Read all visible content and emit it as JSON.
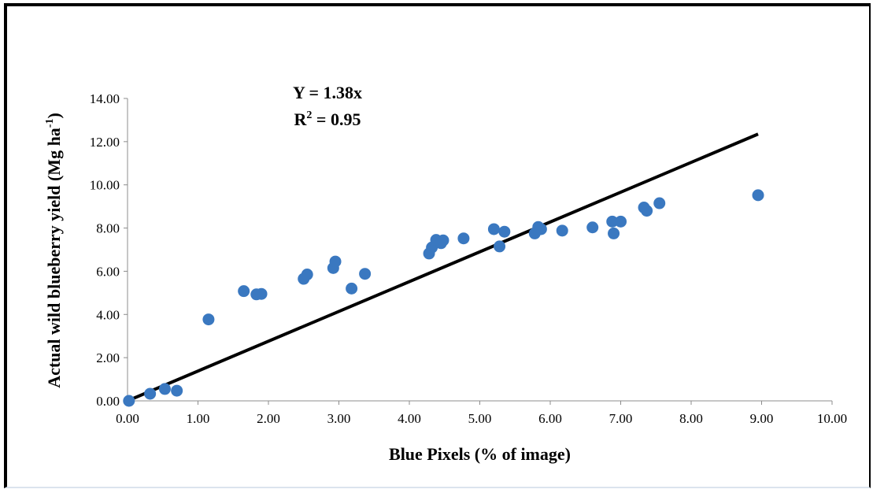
{
  "chart_data": {
    "type": "scatter",
    "title": "",
    "xlabel": "Blue Pixels (% of image)",
    "ylabel": "Actual wild blueberry yield (Mg ha",
    "ylabel_sup": "-1",
    "ylabel_tail": ")",
    "xlim": [
      0,
      10
    ],
    "ylim": [
      0,
      14
    ],
    "x_ticks": [
      "0.00",
      "1.00",
      "2.00",
      "3.00",
      "4.00",
      "5.00",
      "6.00",
      "7.00",
      "8.00",
      "9.00",
      "10.00"
    ],
    "y_ticks": [
      "0.00",
      "2.00",
      "4.00",
      "6.00",
      "8.00",
      "10.00",
      "12.00",
      "14.00"
    ],
    "grid": false,
    "marker_color": "#3a78c0",
    "trendline": {
      "slope": 1.38,
      "x_range": [
        0,
        8.95
      ],
      "color": "#000000",
      "equation": "Y = 1.38x",
      "r2_prefix": "R",
      "r2_sup": "2",
      "r2_suffix": " = 0.95"
    },
    "points": [
      {
        "x": 0.02,
        "y": 0.0
      },
      {
        "x": 0.32,
        "y": 0.33
      },
      {
        "x": 0.53,
        "y": 0.55
      },
      {
        "x": 0.7,
        "y": 0.47
      },
      {
        "x": 1.15,
        "y": 3.77
      },
      {
        "x": 1.65,
        "y": 5.08
      },
      {
        "x": 1.83,
        "y": 4.93
      },
      {
        "x": 1.9,
        "y": 4.95
      },
      {
        "x": 2.5,
        "y": 5.65
      },
      {
        "x": 2.55,
        "y": 5.85
      },
      {
        "x": 2.92,
        "y": 6.15
      },
      {
        "x": 2.95,
        "y": 6.45
      },
      {
        "x": 3.18,
        "y": 5.2
      },
      {
        "x": 3.37,
        "y": 5.88
      },
      {
        "x": 4.28,
        "y": 6.82
      },
      {
        "x": 4.32,
        "y": 7.1
      },
      {
        "x": 4.38,
        "y": 7.45
      },
      {
        "x": 4.45,
        "y": 7.3
      },
      {
        "x": 4.48,
        "y": 7.43
      },
      {
        "x": 4.77,
        "y": 7.52
      },
      {
        "x": 5.2,
        "y": 7.95
      },
      {
        "x": 5.28,
        "y": 7.15
      },
      {
        "x": 5.35,
        "y": 7.83
      },
      {
        "x": 5.78,
        "y": 7.75
      },
      {
        "x": 5.83,
        "y": 8.05
      },
      {
        "x": 5.87,
        "y": 7.95
      },
      {
        "x": 6.17,
        "y": 7.88
      },
      {
        "x": 6.6,
        "y": 8.03
      },
      {
        "x": 6.88,
        "y": 8.3
      },
      {
        "x": 6.9,
        "y": 7.75
      },
      {
        "x": 7.0,
        "y": 8.3
      },
      {
        "x": 7.33,
        "y": 8.95
      },
      {
        "x": 7.37,
        "y": 8.8
      },
      {
        "x": 7.55,
        "y": 9.15
      },
      {
        "x": 8.95,
        "y": 9.52
      }
    ]
  }
}
